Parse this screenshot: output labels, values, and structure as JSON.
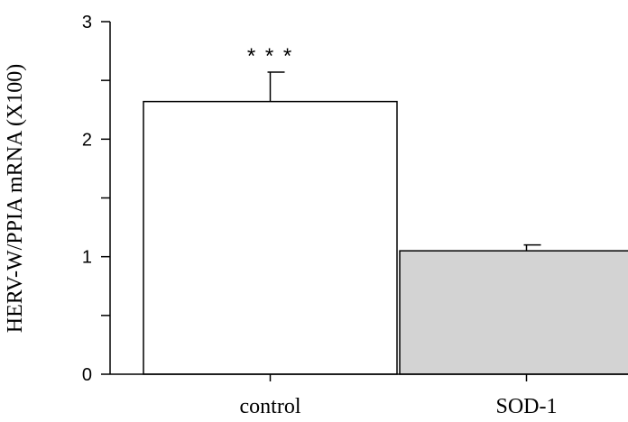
{
  "chart_data": {
    "type": "bar",
    "categories": [
      "control",
      "SOD-1"
    ],
    "values": [
      2.32,
      1.05
    ],
    "error_plus": [
      0.25,
      0.05
    ],
    "bar_colors": [
      "#ffffff",
      "#d3d3d3"
    ],
    "annotations": [
      {
        "category": "control",
        "text": "* * *"
      }
    ],
    "ylabel": "HERV-W/PPIA mRNA (X100)",
    "ylim": [
      0,
      3
    ],
    "yticks_labeled": [
      0,
      1,
      2,
      3
    ],
    "yticks_minor": [
      0.5,
      1.5,
      2.5
    ],
    "grid": false,
    "legend": "none"
  }
}
